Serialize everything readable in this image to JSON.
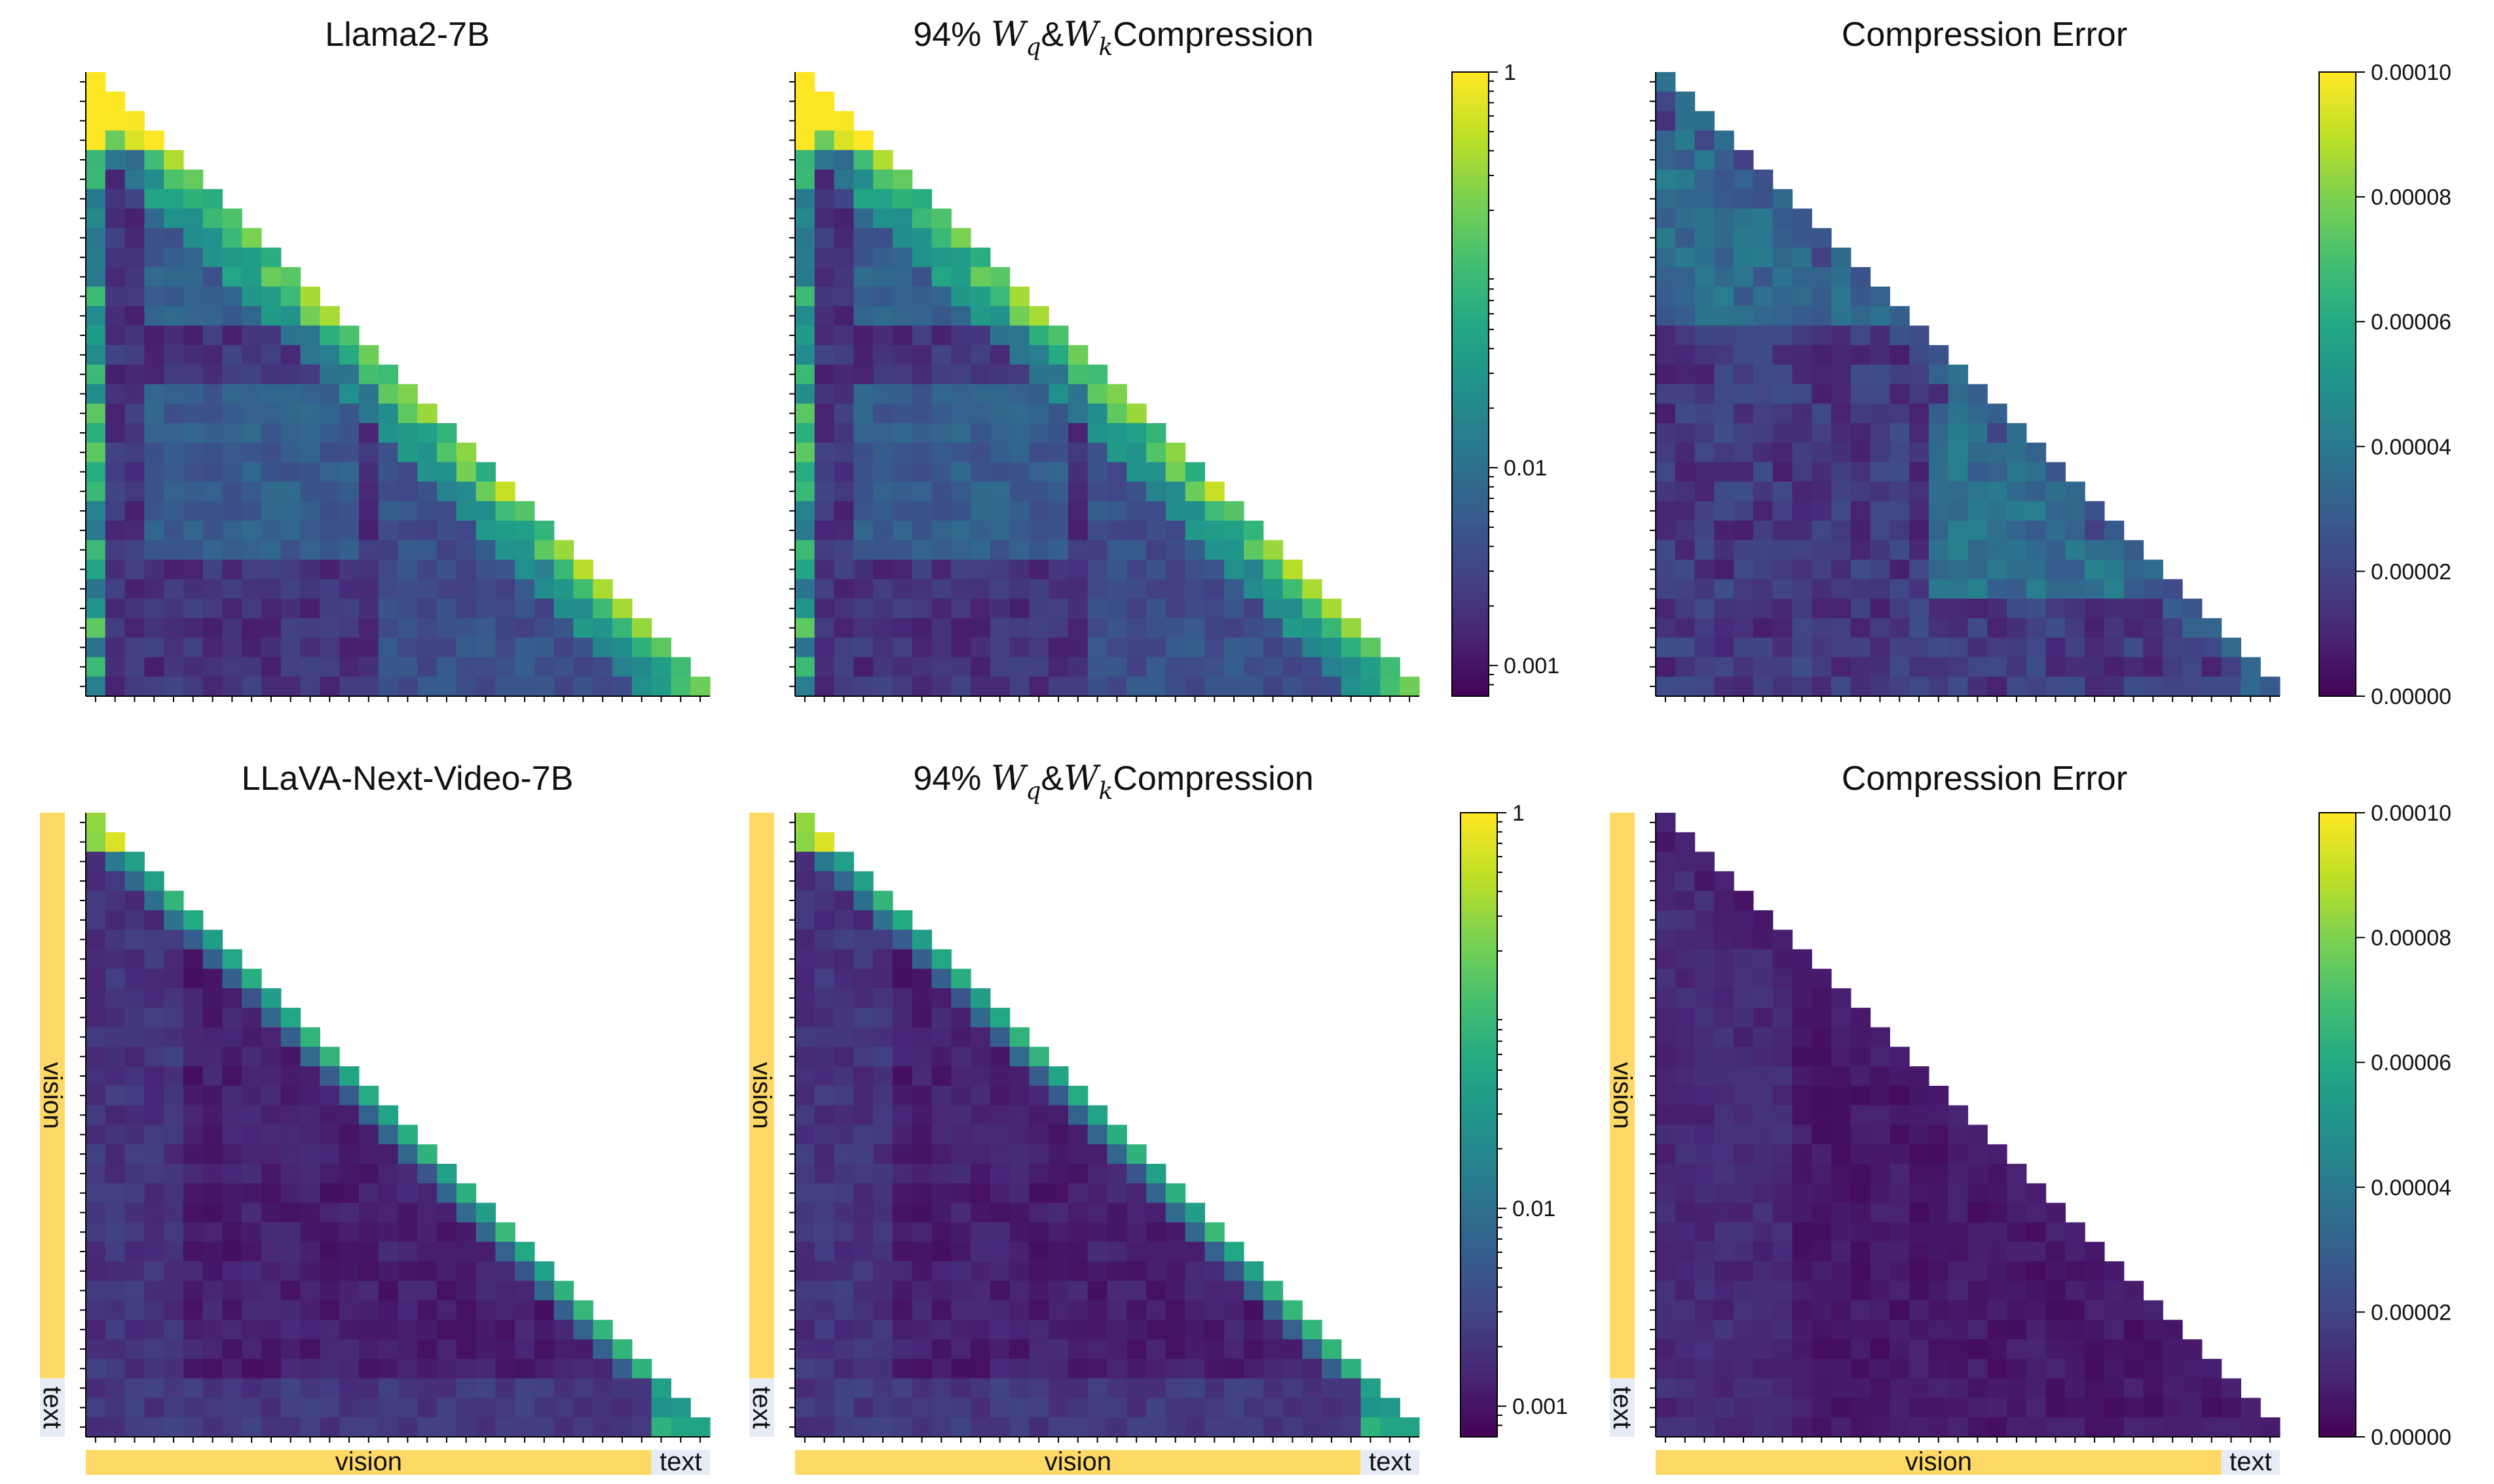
{
  "figure": {
    "description_free": true,
    "colors": {
      "vision_band": "#FFD966",
      "text_band": "#E6ECF7",
      "axis": "#000000"
    }
  },
  "chart_data": [
    {
      "type": "heatmap",
      "id": "p0",
      "title": "Llama2-7B",
      "mask": "lower-triangular",
      "n": 32,
      "scale": "log",
      "model": "llama",
      "colorbar": null,
      "axis_bands": null
    },
    {
      "type": "heatmap",
      "id": "p1",
      "title_parts": {
        "prefix": "94% ",
        "w": "W",
        "q": "q",
        "amp": "&",
        "k": "k",
        "suffix": "Compression"
      },
      "mask": "lower-triangular",
      "n": 32,
      "scale": "log",
      "model": "llama",
      "colorbar": {
        "scale": "log",
        "range": [
          0.0007,
          1
        ],
        "tick_labels": [
          "1",
          "0.01",
          "0.001"
        ],
        "tick_values": [
          1,
          0.01,
          0.001
        ]
      },
      "axis_bands": null
    },
    {
      "type": "heatmap",
      "id": "p2",
      "title": "Compression Error",
      "mask": "lower-triangular",
      "n": 32,
      "scale": "linear",
      "model": "llama-error",
      "colorbar": {
        "scale": "linear",
        "range": [
          0,
          0.0001
        ],
        "tick_labels": [
          "0.00010",
          "0.00008",
          "0.00006",
          "0.00004",
          "0.00002",
          "0.00000"
        ],
        "tick_values": [
          0.0001,
          8e-05,
          6e-05,
          4e-05,
          2e-05,
          0
        ]
      },
      "axis_bands": null
    },
    {
      "type": "heatmap",
      "id": "p3",
      "title": "LLaVA-Next-Video-7B",
      "mask": "lower-triangular",
      "n": 32,
      "scale": "log",
      "model": "llava",
      "colorbar": null,
      "axis_bands": {
        "vision_label": "vision",
        "text_label": "text",
        "vision_tokens": 29,
        "text_tokens": 3
      }
    },
    {
      "type": "heatmap",
      "id": "p4",
      "title_parts": {
        "prefix": "94% ",
        "w": "W",
        "q": "q",
        "amp": "&",
        "k": "k",
        "suffix": "Compression"
      },
      "mask": "lower-triangular",
      "n": 32,
      "scale": "log",
      "model": "llava",
      "colorbar": {
        "scale": "log",
        "range": [
          0.0007,
          1
        ],
        "tick_labels": [
          "1",
          "0.01",
          "0.001"
        ],
        "tick_values": [
          1,
          0.01,
          0.001
        ]
      },
      "axis_bands": {
        "vision_label": "vision",
        "text_label": "text",
        "vision_tokens": 29,
        "text_tokens": 3
      }
    },
    {
      "type": "heatmap",
      "id": "p5",
      "title": "Compression Error",
      "mask": "lower-triangular",
      "n": 32,
      "scale": "linear",
      "model": "llava-error",
      "colorbar": {
        "scale": "linear",
        "range": [
          0,
          0.0001
        ],
        "tick_labels": [
          "0.00010",
          "0.00008",
          "0.00006",
          "0.00004",
          "0.00002",
          "0.00000"
        ],
        "tick_values": [
          0.0001,
          8e-05,
          6e-05,
          4e-05,
          2e-05,
          0
        ]
      },
      "axis_bands": {
        "vision_label": "vision",
        "text_label": "text",
        "vision_tokens": 29,
        "text_tokens": 3
      }
    }
  ]
}
